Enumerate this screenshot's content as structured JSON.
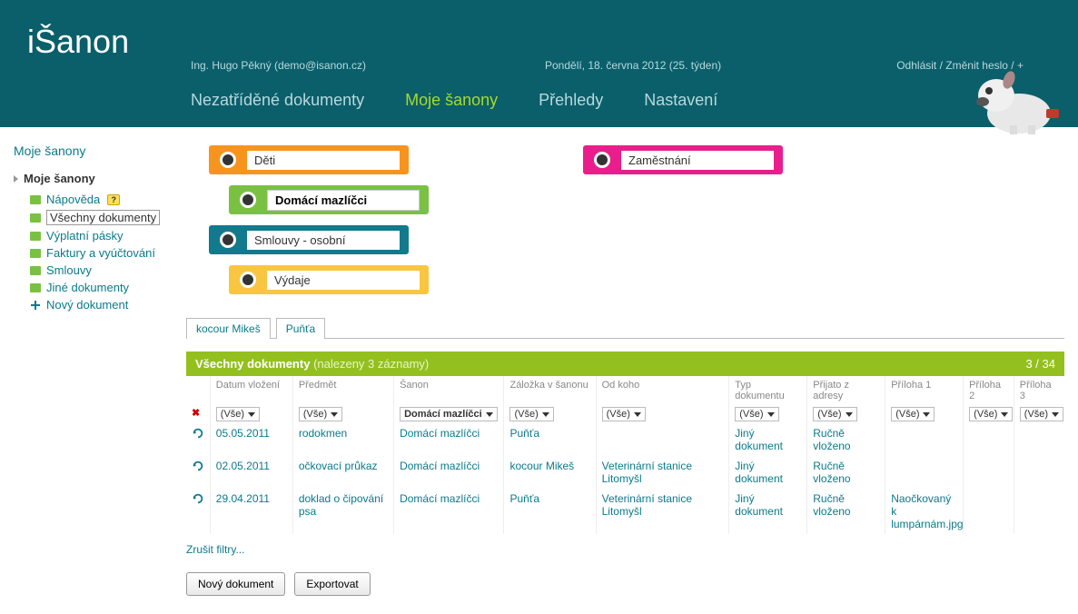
{
  "header": {
    "logo": "iŠanon",
    "user": "Ing. Hugo Pěkný (demo@isanon.cz)",
    "date": "Pondělí, 18. června 2012 (25. týden)",
    "links": {
      "logout": "Odhlásit",
      "changepw": "Změnit heslo",
      "plus": "+"
    }
  },
  "nav": {
    "items": [
      "Nezatříděné dokumenty",
      "Moje šanony",
      "Přehledy",
      "Nastavení"
    ],
    "active_index": 1
  },
  "sidebar": {
    "title": "Moje šanony",
    "root": "Moje šanony",
    "items": [
      {
        "label": "Nápověda",
        "badge": "?"
      },
      {
        "label": "Všechny dokumenty",
        "highlight": true
      },
      {
        "label": "Výplatní pásky"
      },
      {
        "label": "Faktury a vyúčtování"
      },
      {
        "label": "Smlouvy"
      },
      {
        "label": "Jiné dokumenty"
      },
      {
        "label": "Nový dokument",
        "icon": "plus"
      }
    ]
  },
  "folders": {
    "left": [
      {
        "label": "Děti",
        "color": "c-orange",
        "indent": 0
      },
      {
        "label": "Domácí mazlíčci",
        "color": "c-green",
        "indent": 1,
        "selected": true
      },
      {
        "label": "Smlouvy - osobní",
        "color": "c-teal",
        "indent": 0
      },
      {
        "label": "Výdaje",
        "color": "c-yellow",
        "indent": 1
      }
    ],
    "right": [
      {
        "label": "Zaměstnání",
        "color": "c-pink",
        "indent": 0
      }
    ]
  },
  "tabs": [
    "kocour Mikeš",
    "Puňťa"
  ],
  "grid": {
    "title": "Všechny dokumenty",
    "subtitle": "(nalezeny 3 záznamy)",
    "counter": "3 / 34",
    "columns": [
      "Datum vložení",
      "Předmět",
      "Šanon",
      "Záložka v šanonu",
      "Od koho",
      "Typ dokumentu",
      "Přijato z adresy",
      "Příloha 1",
      "Příloha 2",
      "Příloha 3"
    ],
    "col_widths": [
      "90px",
      "110px",
      "120px",
      "100px",
      "145px",
      "85px",
      "85px",
      "85px",
      "55px",
      "55px"
    ],
    "filters": [
      "(Vše)",
      "(Vše)",
      "Domácí mazlíčci",
      "(Vše)",
      "(Vše)",
      "(Vše)",
      "(Vše)",
      "(Vše)",
      "(Vše)",
      "(Vše)"
    ],
    "filter_highlight_index": 2,
    "rows": [
      {
        "date": "05.05.2011",
        "subject": "rodokmen",
        "sanon": "Domácí mazlíčci",
        "bookmark": "Puňťa",
        "from": "",
        "type": "Jiný dokument",
        "addr": "Ručně vloženo",
        "att1": ""
      },
      {
        "date": "02.05.2011",
        "subject": "očkovací průkaz",
        "sanon": "Domácí mazlíčci",
        "bookmark": "kocour Mikeš",
        "from": "Veterinární stanice Litomyšl",
        "type": "Jiný dokument",
        "addr": "Ručně vloženo",
        "att1": ""
      },
      {
        "date": "29.04.2011",
        "subject": "doklad o čipování psa",
        "sanon": "Domácí mazlíčci",
        "bookmark": "Puňťa",
        "from": "Veterinární stanice Litomyšl",
        "type": "Jiný dokument",
        "addr": "Ručně vloženo",
        "att1": "Naočkovaný k lumpárnám.jpg"
      }
    ],
    "reset_filters": "Zrušit filtry...",
    "buttons": {
      "new": "Nový dokument",
      "export": "Exportovat"
    }
  }
}
